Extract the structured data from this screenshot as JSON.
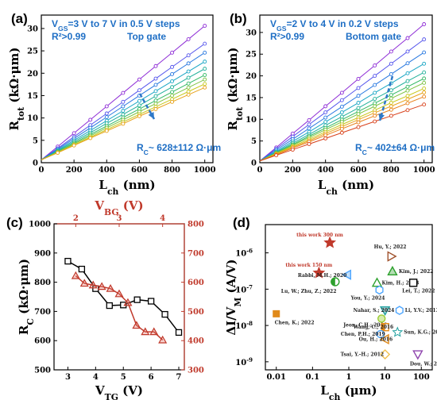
{
  "chart_data": [
    {
      "panel": "(a)",
      "type": "line",
      "xlabel": "L",
      "xlabel_sub": "ch",
      "xlabel_unit": " (nm)",
      "ylabel": "R",
      "ylabel_sub": "tot",
      "ylabel_unit": " (kΩ·μm)",
      "xlim": [
        0,
        1050
      ],
      "ylim": [
        0,
        33
      ],
      "xticks": [
        0,
        200,
        400,
        600,
        800,
        1000
      ],
      "yticks": [
        0,
        5,
        10,
        15,
        20,
        25,
        30
      ],
      "ann1": "V",
      "ann1_sub": "GS",
      "ann1_rest": "=3 V to 7 V in 0.5 V steps",
      "ann2": "R²>0.99",
      "ann3": "Top gate",
      "ann4": "R",
      "ann4_sub": "C",
      "ann4_rest": "~ 628±112 Ω·μm",
      "x": [
        0,
        100,
        200,
        300,
        400,
        500,
        600,
        700,
        800,
        900,
        1000
      ],
      "series": [
        {
          "color": "#8e2cd6",
          "values": [
            0.63,
            3.6,
            6.6,
            9.6,
            12.6,
            15.6,
            18.6,
            21.6,
            24.6,
            27.6,
            30.6
          ]
        },
        {
          "color": "#5656ec",
          "values": [
            0.63,
            3.2,
            5.8,
            8.4,
            11.0,
            13.6,
            16.2,
            18.8,
            21.4,
            24.0,
            26.6
          ]
        },
        {
          "color": "#2878e0",
          "values": [
            0.63,
            3.0,
            5.4,
            7.8,
            10.2,
            12.6,
            15.0,
            17.4,
            19.8,
            22.2,
            24.6
          ]
        },
        {
          "color": "#1aa6c4",
          "values": [
            0.63,
            2.8,
            5.0,
            7.2,
            9.4,
            11.6,
            13.8,
            16.0,
            18.2,
            20.4,
            22.6
          ]
        },
        {
          "color": "#22b09a",
          "values": [
            0.63,
            2.65,
            4.7,
            6.7,
            8.8,
            10.8,
            12.8,
            14.9,
            16.9,
            19.0,
            21.0
          ]
        },
        {
          "color": "#33b864",
          "values": [
            0.63,
            2.5,
            4.4,
            6.3,
            8.2,
            10.1,
            12.0,
            13.9,
            15.8,
            17.7,
            19.6
          ]
        },
        {
          "color": "#7dc240",
          "values": [
            0.63,
            2.4,
            4.2,
            6.0,
            7.8,
            9.6,
            11.4,
            13.2,
            15.0,
            16.8,
            18.6
          ]
        },
        {
          "color": "#c8c81e",
          "values": [
            0.63,
            2.3,
            4.0,
            5.7,
            7.4,
            9.1,
            10.8,
            12.5,
            14.2,
            15.9,
            17.6
          ]
        },
        {
          "color": "#e8a21a",
          "values": [
            0.63,
            2.2,
            3.85,
            5.5,
            7.1,
            8.7,
            10.4,
            12.0,
            13.6,
            15.2,
            16.8
          ]
        }
      ]
    },
    {
      "panel": "(b)",
      "type": "line",
      "xlabel": "L",
      "xlabel_sub": "ch",
      "xlabel_unit": " (nm)",
      "ylabel": "R",
      "ylabel_sub": "tot",
      "ylabel_unit": " (kΩ·μm)",
      "xlim": [
        0,
        1050
      ],
      "ylim": [
        0,
        34
      ],
      "xticks": [
        0,
        200,
        400,
        600,
        800,
        1000
      ],
      "yticks": [
        0,
        5,
        10,
        15,
        20,
        25,
        30
      ],
      "ann1": "V",
      "ann1_sub": "GS",
      "ann1_rest": "=2 V to 4 V in 0.2 V steps",
      "ann2": "R²>0.99",
      "ann3": "Bottom gate",
      "ann4": "R",
      "ann4_sub": "C",
      "ann4_rest": "~ 402±64 Ω·μm",
      "x": [
        0,
        100,
        200,
        300,
        400,
        500,
        600,
        700,
        800,
        900,
        1000
      ],
      "series": [
        {
          "color": "#8e2cd6",
          "values": [
            0.4,
            3.5,
            6.7,
            9.8,
            13.0,
            16.1,
            19.3,
            22.4,
            25.6,
            28.7,
            31.9
          ]
        },
        {
          "color": "#5656ec",
          "values": [
            0.4,
            3.2,
            6.0,
            8.8,
            11.6,
            14.4,
            17.2,
            20.0,
            22.8,
            25.6,
            28.4
          ]
        },
        {
          "color": "#2878e0",
          "values": [
            0.4,
            2.9,
            5.4,
            7.9,
            10.4,
            12.9,
            15.4,
            17.9,
            20.4,
            22.9,
            25.4
          ]
        },
        {
          "color": "#1aa6c4",
          "values": [
            0.4,
            2.6,
            4.9,
            7.1,
            9.4,
            11.6,
            13.8,
            16.1,
            18.3,
            20.6,
            22.8
          ]
        },
        {
          "color": "#22b09a",
          "values": [
            0.4,
            2.4,
            4.5,
            6.5,
            8.6,
            10.6,
            12.6,
            14.7,
            16.7,
            18.8,
            20.8
          ]
        },
        {
          "color": "#33b864",
          "values": [
            0.4,
            2.3,
            4.2,
            6.1,
            8.0,
            9.9,
            11.8,
            13.7,
            15.6,
            17.5,
            19.4
          ]
        },
        {
          "color": "#7dc240",
          "values": [
            0.4,
            2.2,
            4.0,
            5.8,
            7.6,
            9.4,
            11.2,
            13.0,
            14.8,
            16.6,
            18.4
          ]
        },
        {
          "color": "#c8c81e",
          "values": [
            0.4,
            2.1,
            3.75,
            5.4,
            7.1,
            8.8,
            10.4,
            12.1,
            13.8,
            15.4,
            17.1
          ]
        },
        {
          "color": "#e8a21a",
          "values": [
            0.4,
            2.0,
            3.55,
            5.1,
            6.7,
            8.3,
            9.9,
            11.5,
            13.0,
            14.6,
            16.2
          ]
        },
        {
          "color": "#e8801a",
          "values": [
            0.4,
            1.85,
            3.35,
            4.8,
            6.3,
            7.8,
            9.3,
            10.8,
            12.2,
            13.7,
            15.2
          ]
        },
        {
          "color": "#d8401a",
          "values": [
            0.4,
            1.7,
            3.0,
            4.3,
            5.6,
            6.9,
            8.2,
            9.5,
            10.8,
            12.1,
            13.4
          ]
        }
      ]
    },
    {
      "panel": "(c)",
      "type": "line",
      "xlabel": "V",
      "xlabel_sub": "TG",
      "xlabel_unit": " (V)",
      "ylabel": "R",
      "ylabel_sub": "C",
      "ylabel_unit": " (kΩ·μm)",
      "top_xlabel": "V",
      "top_xlabel_sub": "BG",
      "top_xlabel_unit": " (V)",
      "xlim": [
        2.5,
        7.2
      ],
      "ylim": [
        500,
        1000
      ],
      "xticks": [
        3,
        4,
        5,
        6,
        7
      ],
      "yticks": [
        500,
        600,
        700,
        800,
        900,
        1000
      ],
      "top_xlim": [
        1.5,
        4.5
      ],
      "top_xticks": [
        2,
        3,
        4
      ],
      "right_ylim": [
        300,
        800
      ],
      "right_yticks": [
        300,
        400,
        500,
        600,
        700,
        800
      ],
      "series": [
        {
          "name": "",
          "axis": "bottom-left",
          "color": "#000000",
          "marker": "square",
          "x": [
            3.0,
            3.5,
            4.0,
            4.5,
            5.0,
            5.5,
            6.0,
            6.5,
            7.0
          ],
          "values": [
            872,
            845,
            778,
            720,
            722,
            740,
            735,
            690,
            628
          ]
        },
        {
          "name": "",
          "axis": "top-right",
          "color": "#c0392b",
          "marker": "triangle",
          "x": [
            2.0,
            2.2,
            2.4,
            2.6,
            2.8,
            3.0,
            3.2,
            3.4,
            3.6,
            3.8,
            4.0
          ],
          "values": [
            622,
            596,
            590,
            585,
            578,
            560,
            530,
            452,
            430,
            430,
            402
          ]
        }
      ]
    },
    {
      "panel": "(d)",
      "type": "scatter",
      "xlabel": "L",
      "xlabel_sub": "ch",
      "xlabel_unit": " (μm)",
      "ylabel": "ΔI/V",
      "ylabel_sub": "M",
      "ylabel_unit": " (A/V)",
      "xscale": "log",
      "yscale": "log",
      "xlim": [
        0.005,
        200
      ],
      "ylim": [
        6e-10,
        6e-06
      ],
      "xticks": [
        "0.01",
        "0.1",
        "1",
        "10",
        "100"
      ],
      "yticks": [
        "10",
        "10",
        "10",
        "10"
      ],
      "ytick_exps": [
        "-9",
        "-8",
        "-7",
        "-6"
      ],
      "points": [
        {
          "label": "this work 300 nm",
          "x": 0.3,
          "y": 1.9e-06,
          "color": "#c0392b",
          "marker": "star"
        },
        {
          "label": "this work 150 nm",
          "x": 0.15,
          "y": 2.8e-07,
          "color": "#c0392b",
          "marker": "star"
        },
        {
          "label": "Hu, Y.; 2022",
          "x": 15,
          "y": 8e-07,
          "color": "#a0522d",
          "marker": "triangle-right"
        },
        {
          "label": "Kim, J.; 2022",
          "x": 16,
          "y": 3.1e-07,
          "color": "#2ca02c",
          "marker": "triangle-up"
        },
        {
          "label": "Rabbi, M.H.; 2020",
          "x": 0.9,
          "y": 2.5e-07,
          "color": "#4da6ff",
          "marker": "triangle-left"
        },
        {
          "label": "Lu, W.; Zhu, Z.; 2022",
          "x": 0.42,
          "y": 1.6e-07,
          "color": "#2ca02c",
          "marker": "circle-half"
        },
        {
          "label": "Kim, H.; 2023",
          "x": 6,
          "y": 1.5e-07,
          "color": "#2ca02c",
          "marker": "triangle-up-open"
        },
        {
          "label": "Lei, T.; 2022",
          "x": 60,
          "y": 1.5e-07,
          "color": "#000000",
          "marker": "square-open"
        },
        {
          "label": "You, Y.; 2024",
          "x": 7,
          "y": 9.5e-08,
          "color": "#4da6ff",
          "marker": "hexagon"
        },
        {
          "label": "Chen, K.; 2022",
          "x": 0.01,
          "y": 2.1e-08,
          "color": "#e08a1a",
          "marker": "square"
        },
        {
          "label": "Nahar, S.; 2024",
          "x": 10,
          "y": 2.6e-08,
          "color": "#20a0a0",
          "marker": "triangle-down"
        },
        {
          "label": "Li, Y.V.; 2013",
          "x": 25,
          "y": 2.6e-08,
          "color": "#4da6ff",
          "marker": "hexagon"
        },
        {
          "label": "Jeon, C.H.; 2016",
          "x": 8,
          "y": 1.55e-08,
          "color": "#9acd32",
          "marker": "circle"
        },
        {
          "label": "Wang, C.; 2016",
          "x": 10,
          "y": 9e-09,
          "color": "#e08a1a",
          "marker": "square-half"
        },
        {
          "label": "Sun, K.G.; 2016",
          "x": 22,
          "y": 6.5e-09,
          "color": "#20a0a0",
          "marker": "star-open"
        },
        {
          "label": "Chen, P.H.; 2019",
          "x": 7.5,
          "y": 5.8e-09,
          "color": "#4da6ff",
          "marker": "circle-open"
        },
        {
          "label": "Ou, H.; 2016",
          "x": 10,
          "y": 4.2e-09,
          "color": "#e08a1a",
          "marker": "triangle-left-open"
        },
        {
          "label": "Tsai, Y.-H.; 2012",
          "x": 10,
          "y": 1.6e-09,
          "color": "#f2c14e",
          "marker": "diamond-open"
        },
        {
          "label": "Dou, W.; 2020",
          "x": 80,
          "y": 1.6e-09,
          "color": "#8e44ad",
          "marker": "triangle-down-open"
        }
      ]
    }
  ]
}
